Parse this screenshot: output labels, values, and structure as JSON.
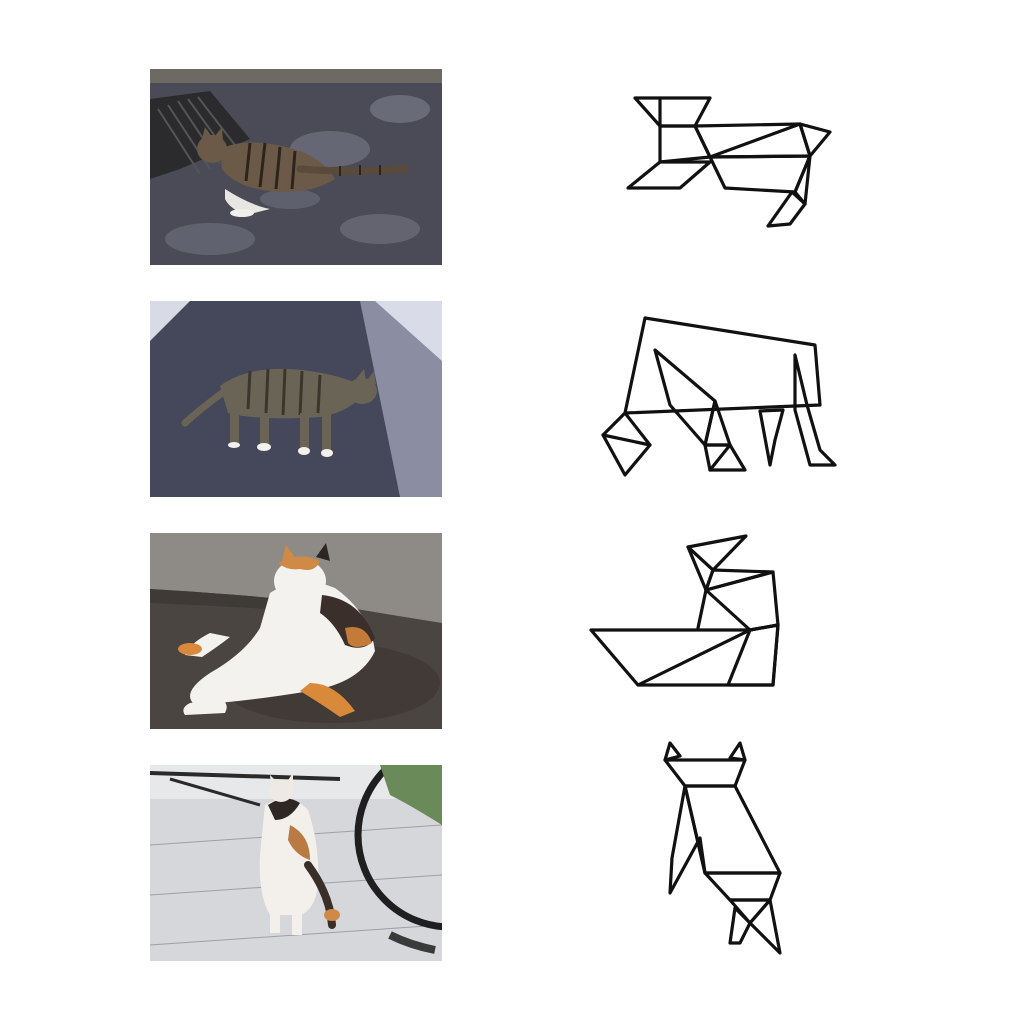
{
  "figure": {
    "rows": [
      {
        "photo_subject": "tabby-cat-lying",
        "tangram_pose": "lying"
      },
      {
        "photo_subject": "tabby-cat-walking",
        "tangram_pose": "walking"
      },
      {
        "photo_subject": "calico-cat-grooming",
        "tangram_pose": "sitting-grooming"
      },
      {
        "photo_subject": "calico-cat-standing",
        "tangram_pose": "standing-back-view"
      }
    ],
    "colors": {
      "background": "#ffffff",
      "line": "#111111",
      "asphalt": "#4a4a56",
      "tabby": "#6b5a48",
      "calico_orange": "#d9893a"
    }
  }
}
